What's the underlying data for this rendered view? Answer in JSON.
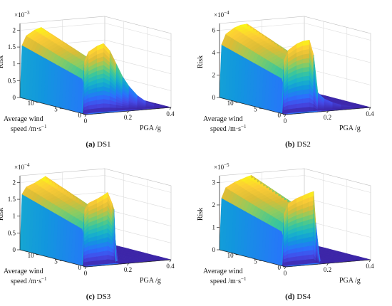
{
  "figure": {
    "panels": [
      {
        "caption_tag": "(a)",
        "caption_text": "DS1",
        "chart_data": {
          "type": "surface",
          "x_label": "PGA /g",
          "y_label_line1": "Average wind",
          "y_label_line2": "speed /m·s",
          "y_label_sup": "−1",
          "z_label": "Risk",
          "z_exponent_base": "×10",
          "z_exponent_power": "−3",
          "x_ticks": [
            0,
            0.2,
            0.4
          ],
          "x_tick_labels": [
            "0",
            "0.2",
            "0.4"
          ],
          "y_ticks": [
            0,
            5,
            10
          ],
          "y_tick_labels": [
            "0",
            "5",
            "10"
          ],
          "z_ticks": [
            0,
            0.5,
            1,
            1.5,
            2
          ],
          "z_tick_labels": [
            "0",
            "0.5",
            "1",
            "1.5",
            "2"
          ],
          "xlim": [
            0,
            0.4
          ],
          "ylim": [
            0,
            14
          ],
          "zlim": [
            0,
            2.2
          ],
          "surface_profile": {
            "pga": [
              0,
              0.01,
              0.03,
              0.07,
              0.1,
              0.13,
              0.16,
              0.19,
              0.22,
              0.26,
              0.3,
              0.34,
              0.38,
              0.4
            ],
            "risk_at_max_wind": [
              0,
              1.55,
              1.82,
              1.97,
              2.03,
              1.8,
              1.4,
              1.0,
              0.7,
              0.4,
              0.2,
              0.08,
              0.02,
              0
            ]
          },
          "colormap": "parula"
        }
      },
      {
        "caption_tag": "(b)",
        "caption_text": "DS2",
        "chart_data": {
          "type": "surface",
          "x_label": "PGA /g",
          "y_label_line1": "Average wind",
          "y_label_line2": "speed /m·s",
          "y_label_sup": "−1",
          "z_label": "Risk",
          "z_exponent_base": "×10",
          "z_exponent_power": "−4",
          "x_ticks": [
            0,
            0.2,
            0.4
          ],
          "x_tick_labels": [
            "0",
            "0.2",
            "0.4"
          ],
          "y_ticks": [
            0,
            5,
            10
          ],
          "y_tick_labels": [
            "0",
            "5",
            "10"
          ],
          "z_ticks": [
            0,
            2,
            4,
            6
          ],
          "z_tick_labels": [
            "0",
            "2",
            "4",
            "6"
          ],
          "xlim": [
            0,
            0.4
          ],
          "ylim": [
            0,
            14
          ],
          "zlim": [
            0,
            6.6
          ],
          "surface_profile": {
            "pga": [
              0,
              0.01,
              0.03,
              0.07,
              0.1,
              0.13,
              0.15,
              0.17,
              0.2,
              0.24,
              0.28,
              0.33,
              0.38,
              0.4
            ],
            "risk_at_max_wind": [
              0,
              4.7,
              5.6,
              6.1,
              6.3,
              6.35,
              5.0,
              1.6,
              1.0,
              0.6,
              0.3,
              0.1,
              0.02,
              0
            ]
          },
          "colormap": "parula"
        }
      },
      {
        "caption_tag": "(c)",
        "caption_text": "DS3",
        "chart_data": {
          "type": "surface",
          "x_label": "PGA /g",
          "y_label_line1": "Average wind",
          "y_label_line2": "speed /m·s",
          "y_label_sup": "−1",
          "z_label": "Risk",
          "z_exponent_base": "×10",
          "z_exponent_power": "−4",
          "x_ticks": [
            0,
            0.2,
            0.4
          ],
          "x_tick_labels": [
            "0",
            "0.2",
            "0.4"
          ],
          "y_ticks": [
            0,
            5,
            10
          ],
          "y_tick_labels": [
            "0",
            "5",
            "10"
          ],
          "z_ticks": [
            0,
            0.5,
            1,
            1.5,
            2
          ],
          "z_tick_labels": [
            "0",
            "0.5",
            "1",
            "1.5",
            "2"
          ],
          "xlim": [
            0,
            0.4
          ],
          "ylim": [
            0,
            14
          ],
          "zlim": [
            0,
            2.2
          ],
          "surface_profile": {
            "pga": [
              0,
              0.01,
              0.03,
              0.07,
              0.1,
              0.12,
              0.14,
              0.15,
              0.16,
              0.18,
              0.22,
              0.3,
              0.4
            ],
            "risk_at_max_wind": [
              0,
              1.65,
              1.85,
              1.95,
              2.05,
              2.12,
              1.8,
              1.6,
              0.05,
              0.02,
              0.01,
              0,
              0
            ]
          },
          "colormap": "parula"
        }
      },
      {
        "caption_tag": "(d)",
        "caption_text": "DS4",
        "chart_data": {
          "type": "surface",
          "x_label": "PGA /g",
          "y_label_line1": "Average wind",
          "y_label_line2": "speed /m·s",
          "y_label_sup": "−1",
          "z_label": "Risk",
          "z_exponent_base": "×10",
          "z_exponent_power": "−5",
          "x_ticks": [
            0,
            0.2,
            0.4
          ],
          "x_tick_labels": [
            "0",
            "0.2",
            "0.4"
          ],
          "y_ticks": [
            0,
            5,
            10
          ],
          "y_tick_labels": [
            "0",
            "5",
            "10"
          ],
          "z_ticks": [
            0,
            1,
            2,
            3
          ],
          "z_tick_labels": [
            "0",
            "1",
            "2",
            "3"
          ],
          "xlim": [
            0,
            0.4
          ],
          "ylim": [
            0,
            14
          ],
          "zlim": [
            0,
            3.3
          ],
          "surface_profile": {
            "pga": [
              0,
              0.01,
              0.03,
              0.07,
              0.1,
              0.13,
              0.15,
              0.16,
              0.18,
              0.2,
              0.25,
              0.3,
              0.4
            ],
            "risk_at_max_wind": [
              0,
              2.3,
              2.75,
              2.95,
              3.05,
              3.15,
              3.2,
              1.8,
              0.05,
              0.01,
              0,
              0,
              0
            ]
          },
          "colormap": "parula"
        }
      }
    ]
  }
}
